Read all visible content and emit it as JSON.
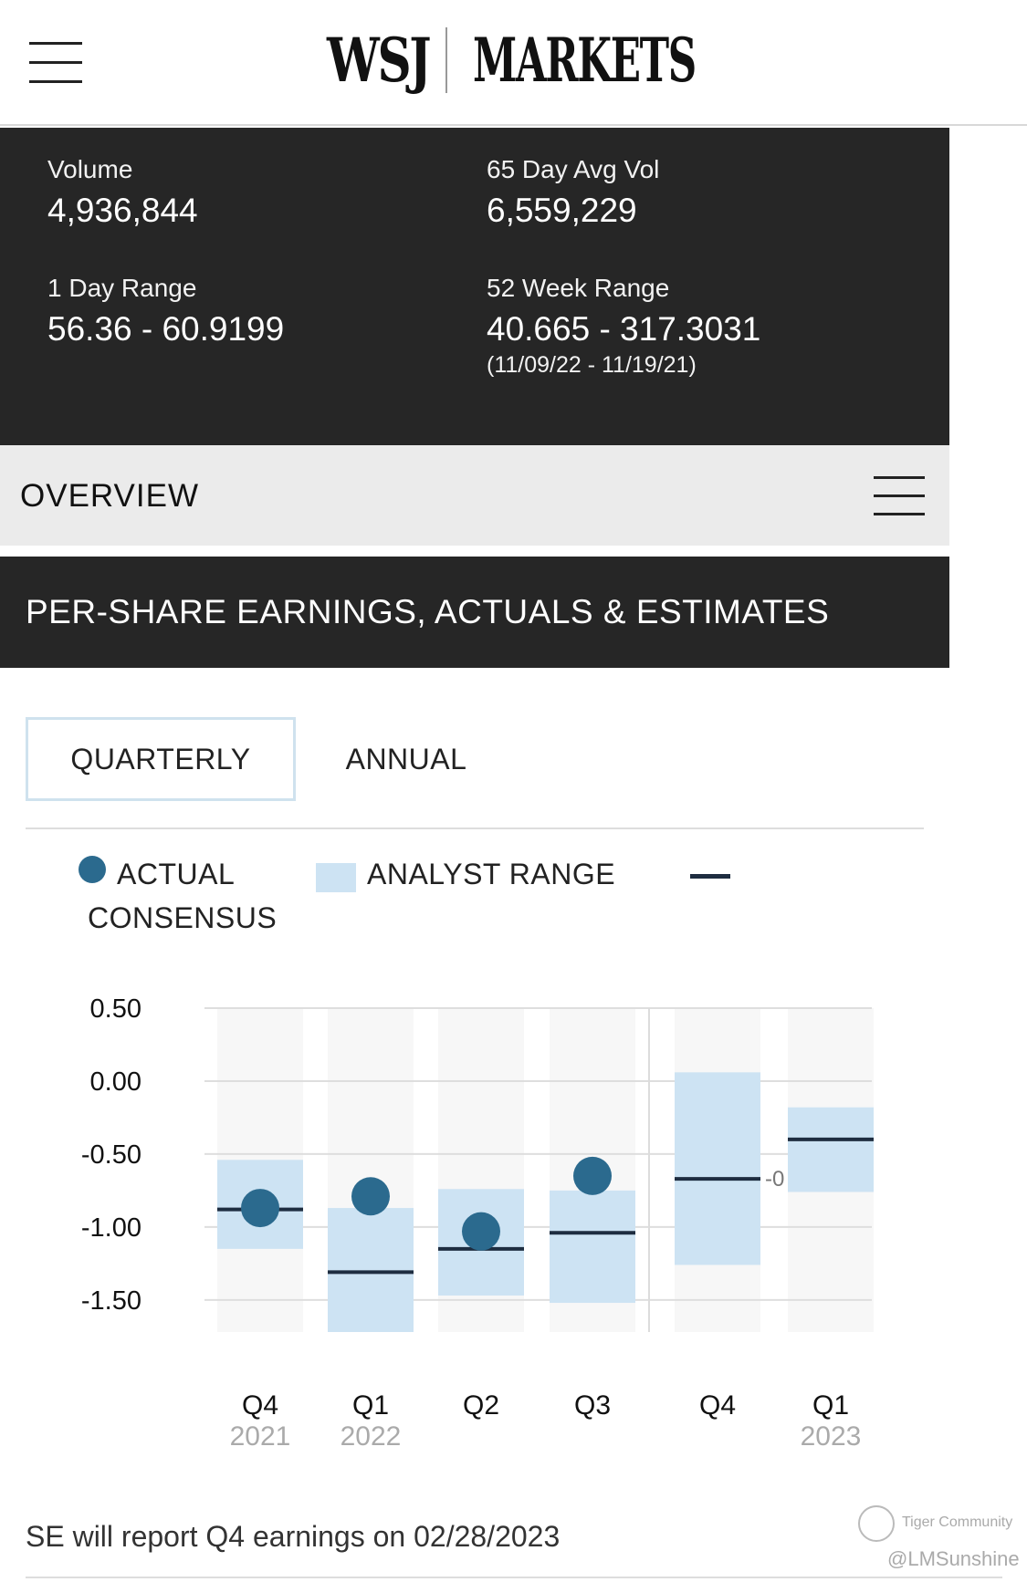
{
  "header": {
    "brand": "WSJ",
    "section": "MARKETS"
  },
  "stats": {
    "volume_label": "Volume",
    "volume_value": "4,936,844",
    "avg_vol_label": "65 Day Avg Vol",
    "avg_vol_value": "6,559,229",
    "day_range_label": "1 Day Range",
    "day_range_value": "56.36 - 60.9199",
    "week52_label": "52 Week Range",
    "week52_value": "40.665 - 317.3031",
    "week52_dates": "(11/09/22 - 11/19/21)"
  },
  "overview": {
    "title": "OVERVIEW"
  },
  "earnings": {
    "title": "PER-SHARE EARNINGS, ACTUALS & ESTIMATES",
    "tabs": [
      {
        "label": "QUARTERLY",
        "active": true
      },
      {
        "label": "ANNUAL",
        "active": false
      }
    ],
    "legend": {
      "actual": "ACTUAL",
      "range": "ANALYST RANGE",
      "consensus": "CONSENSUS"
    },
    "truncated_label": "-0",
    "report_note": "SE will report Q4 earnings on 02/28/2023"
  },
  "colors": {
    "actual": "#2b6a8e",
    "range": "#cde3f3",
    "consensus": "#1e2d40",
    "dark_panel": "#262626"
  },
  "chart_data": {
    "type": "scatter",
    "title": "PER-SHARE EARNINGS, ACTUALS & ESTIMATES",
    "ylim": [
      -1.72,
      0.5
    ],
    "yticks": [
      0.5,
      0.0,
      -0.5,
      -1.0,
      -1.5
    ],
    "ytick_labels": [
      "0.50",
      "0.00",
      "-0.50",
      "-1.00",
      "-1.50"
    ],
    "grid": true,
    "legend_placement": "top",
    "categories": [
      {
        "quarter": "Q4",
        "year": "2021"
      },
      {
        "quarter": "Q1",
        "year": "2022"
      },
      {
        "quarter": "Q2",
        "year": ""
      },
      {
        "quarter": "Q3",
        "year": ""
      },
      {
        "quarter": "Q4",
        "year": ""
      },
      {
        "quarter": "Q1",
        "year": "2023"
      }
    ],
    "series": [
      {
        "name": "ACTUAL",
        "values": [
          -0.87,
          -0.79,
          -1.03,
          -0.65,
          null,
          null
        ]
      },
      {
        "name": "ANALYST RANGE",
        "low": [
          -1.15,
          -1.72,
          -1.47,
          -1.52,
          -1.26,
          -0.76
        ],
        "high": [
          -0.54,
          -0.87,
          -0.74,
          -0.75,
          0.06,
          -0.18
        ]
      },
      {
        "name": "CONSENSUS",
        "values": [
          -0.88,
          -1.31,
          -1.15,
          -1.04,
          -0.67,
          -0.4
        ]
      }
    ]
  }
}
